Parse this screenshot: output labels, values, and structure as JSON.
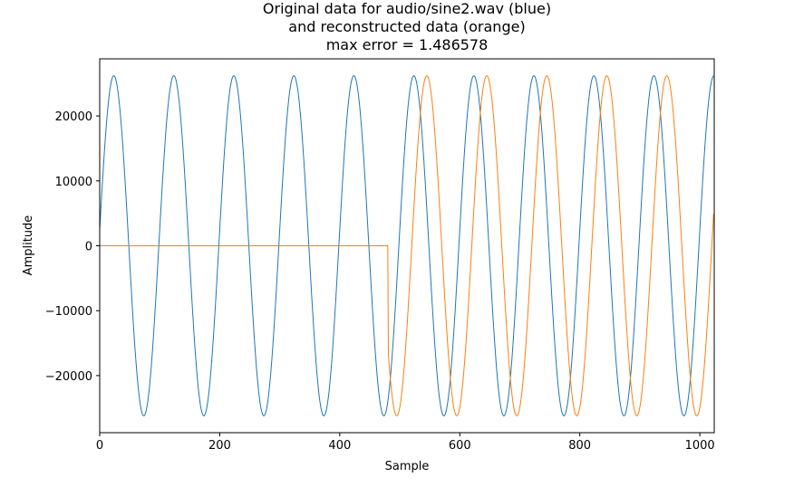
{
  "chart_data": {
    "type": "line",
    "title_lines": [
      "Original data for audio/sine2.wav (blue)",
      "and reconstructed data (orange)",
      "max error = 1.486578"
    ],
    "xlabel": "Sample",
    "ylabel": "Amplitude",
    "xlim": [
      0,
      1024
    ],
    "ylim": [
      -28800,
      28800
    ],
    "x_ticks": [
      0,
      200,
      400,
      600,
      800,
      1000
    ],
    "y_ticks": [
      -20000,
      -10000,
      0,
      10000,
      20000
    ],
    "grid": false,
    "series": [
      {
        "name": "blue",
        "color": "#1f77b4",
        "signal": {
          "kind": "sine",
          "amplitude": 26200,
          "period": 100,
          "phase_offset": 1.5,
          "start": 0,
          "end": 1023
        }
      },
      {
        "name": "orange",
        "color": "#ff7f0e",
        "signal": {
          "kind": "sine",
          "amplitude": 26200,
          "period": 100,
          "phase_offset": -20,
          "zero_until": 481,
          "start": 0,
          "end": 1023
        }
      }
    ]
  }
}
